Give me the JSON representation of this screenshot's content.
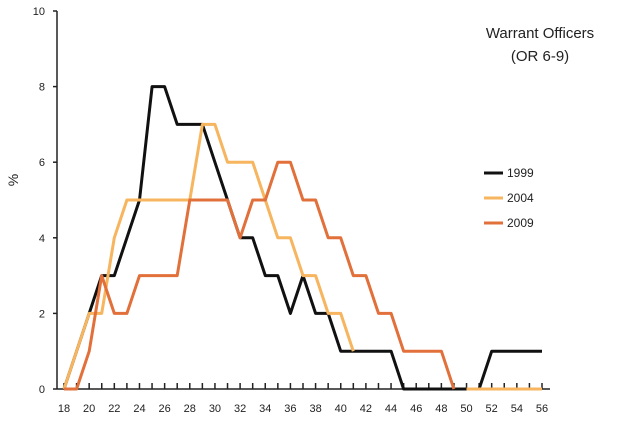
{
  "chart_data": {
    "type": "line",
    "title_lines": [
      "Warrant Officers",
      "(OR 6-9)"
    ],
    "xlabel": "",
    "ylabel": "%",
    "xlim": [
      18,
      56
    ],
    "ylim": [
      0,
      10
    ],
    "x_ticks": [
      18,
      20,
      22,
      24,
      26,
      28,
      30,
      32,
      34,
      36,
      38,
      40,
      42,
      44,
      46,
      48,
      50,
      52,
      54,
      56
    ],
    "y_ticks": [
      0,
      2,
      4,
      6,
      8,
      10
    ],
    "grid": false,
    "legend_position": "right",
    "x": [
      18,
      19,
      20,
      21,
      22,
      23,
      24,
      25,
      26,
      27,
      28,
      29,
      30,
      31,
      32,
      33,
      34,
      35,
      36,
      37,
      38,
      39,
      40,
      41,
      42,
      43,
      44,
      45,
      46,
      47,
      48,
      49,
      50,
      51,
      52,
      53,
      54,
      55,
      56
    ],
    "series": [
      {
        "name": "1999",
        "color": "#111111",
        "values": [
          0,
          1,
          2,
          3,
          3,
          4,
          5,
          8,
          8,
          7,
          7,
          7,
          6,
          5,
          4,
          4,
          3,
          3,
          2,
          3,
          2,
          2,
          1,
          1,
          1,
          1,
          1,
          0,
          0,
          0,
          0,
          0,
          0,
          0,
          1,
          1,
          1,
          1,
          1
        ]
      },
      {
        "name": "2004",
        "color": "#f6b55e",
        "values": [
          0,
          1,
          2,
          2,
          4,
          5,
          5,
          5,
          5,
          5,
          5,
          7,
          7,
          6,
          6,
          6,
          5,
          4,
          4,
          3,
          3,
          2,
          2,
          1,
          null,
          null,
          null,
          null,
          null,
          null,
          null,
          null,
          0,
          0,
          0,
          0,
          0,
          0,
          0
        ]
      },
      {
        "name": "2009",
        "color": "#e2703a",
        "values": [
          0,
          0,
          1,
          3,
          2,
          2,
          3,
          3,
          3,
          3,
          5,
          5,
          5,
          5,
          4,
          5,
          5,
          6,
          6,
          5,
          5,
          4,
          4,
          3,
          3,
          2,
          2,
          1,
          1,
          1,
          1,
          0,
          null,
          null,
          null,
          null,
          null,
          null,
          null
        ]
      }
    ]
  }
}
